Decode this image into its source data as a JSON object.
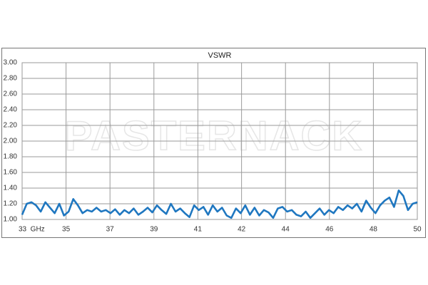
{
  "chart_data": {
    "type": "line",
    "title": "VSWR",
    "watermark": "PASTERNACK",
    "x": [
      33.0,
      33.2,
      33.4,
      33.6,
      33.8,
      34.0,
      34.2,
      34.4,
      34.6,
      34.8,
      35.0,
      35.2,
      35.4,
      35.6,
      35.8,
      36.0,
      36.2,
      36.4,
      36.6,
      36.8,
      37.0,
      37.2,
      37.4,
      37.6,
      37.8,
      38.0,
      38.2,
      38.4,
      38.6,
      38.8,
      39.0,
      39.2,
      39.4,
      39.6,
      39.8,
      40.0,
      40.2,
      40.4,
      40.6,
      40.8,
      41.0,
      41.2,
      41.4,
      41.6,
      41.8,
      42.0,
      42.2,
      42.4,
      42.6,
      42.8,
      43.0,
      43.2,
      43.4,
      43.6,
      43.8,
      44.0,
      44.2,
      44.4,
      44.6,
      44.8,
      45.0,
      45.2,
      45.4,
      45.6,
      45.8,
      46.0,
      46.2,
      46.4,
      46.6,
      46.8,
      47.0,
      47.2,
      47.4,
      47.6,
      47.8,
      48.0,
      48.2,
      48.4,
      48.6,
      48.8,
      49.0,
      49.2,
      49.4,
      49.6,
      49.8,
      50.0
    ],
    "series": [
      {
        "color": "#1f77c0",
        "values": [
          1.06,
          1.2,
          1.22,
          1.18,
          1.1,
          1.22,
          1.15,
          1.08,
          1.2,
          1.05,
          1.1,
          1.26,
          1.18,
          1.08,
          1.12,
          1.1,
          1.15,
          1.1,
          1.12,
          1.08,
          1.13,
          1.06,
          1.12,
          1.08,
          1.14,
          1.06,
          1.1,
          1.15,
          1.09,
          1.18,
          1.12,
          1.07,
          1.2,
          1.1,
          1.14,
          1.08,
          1.03,
          1.18,
          1.12,
          1.16,
          1.06,
          1.18,
          1.1,
          1.15,
          1.05,
          1.02,
          1.14,
          1.08,
          1.18,
          1.06,
          1.15,
          1.05,
          1.12,
          1.09,
          1.02,
          1.14,
          1.16,
          1.1,
          1.12,
          1.06,
          1.04,
          1.1,
          1.02,
          1.08,
          1.14,
          1.06,
          1.12,
          1.08,
          1.16,
          1.12,
          1.18,
          1.14,
          1.2,
          1.1,
          1.24,
          1.15,
          1.08,
          1.18,
          1.24,
          1.28,
          1.16,
          1.37,
          1.3,
          1.12,
          1.2,
          1.22
        ]
      }
    ],
    "xlim": [
      33,
      50
    ],
    "xticks": [
      {
        "value": 33,
        "label": "33  GHz"
      },
      {
        "value": 34.89,
        "label": "35"
      },
      {
        "value": 36.78,
        "label": "37"
      },
      {
        "value": 38.67,
        "label": "39"
      },
      {
        "value": 40.56,
        "label": "41"
      },
      {
        "value": 42.44,
        "label": "42"
      },
      {
        "value": 44.33,
        "label": "44"
      },
      {
        "value": 46.22,
        "label": "46"
      },
      {
        "value": 48.11,
        "label": "48"
      },
      {
        "value": 50,
        "label": "50"
      }
    ],
    "ylim": [
      1,
      3
    ],
    "yticks": [
      {
        "value": 1,
        "label": "1.00"
      },
      {
        "value": 1.2,
        "label": "1.20"
      },
      {
        "value": 1.4,
        "label": "1.40"
      },
      {
        "value": 1.6,
        "label": "1.60"
      },
      {
        "value": 1.8,
        "label": "1.80"
      },
      {
        "value": 2,
        "label": "2.00"
      },
      {
        "value": 2.2,
        "label": "2.20"
      },
      {
        "value": 2.4,
        "label": "2.40"
      },
      {
        "value": 2.6,
        "label": "2.60"
      },
      {
        "value": 2.8,
        "label": "2.80"
      },
      {
        "value": 3,
        "label": "3.00"
      }
    ],
    "grid": true
  }
}
